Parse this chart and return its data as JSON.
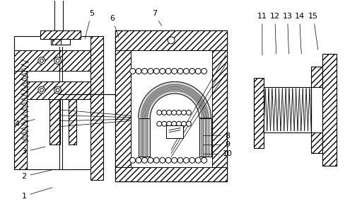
{
  "bg_color": "#ffffff",
  "line_color": "#000000",
  "label_color": "#000000",
  "figsize": [
    5.12,
    2.95
  ],
  "dpi": 100,
  "lw": 0.7,
  "hatch": "////",
  "labels": [
    [
      "1",
      32,
      278,
      75,
      265
    ],
    [
      "2",
      32,
      250,
      75,
      240
    ],
    [
      "3",
      32,
      215,
      65,
      207
    ],
    [
      "4",
      22,
      175,
      50,
      168
    ],
    [
      "5",
      128,
      18,
      118,
      57
    ],
    [
      "6",
      158,
      25,
      168,
      55
    ],
    [
      "7",
      218,
      18,
      230,
      38
    ],
    [
      "8",
      322,
      192,
      285,
      192
    ],
    [
      "9",
      322,
      205,
      285,
      205
    ],
    [
      "10",
      322,
      218,
      285,
      218
    ],
    [
      "11",
      372,
      22,
      372,
      80
    ],
    [
      "12",
      390,
      22,
      392,
      78
    ],
    [
      "13",
      408,
      22,
      410,
      78
    ],
    [
      "14",
      425,
      22,
      428,
      78
    ],
    [
      "15",
      445,
      22,
      452,
      72
    ]
  ]
}
